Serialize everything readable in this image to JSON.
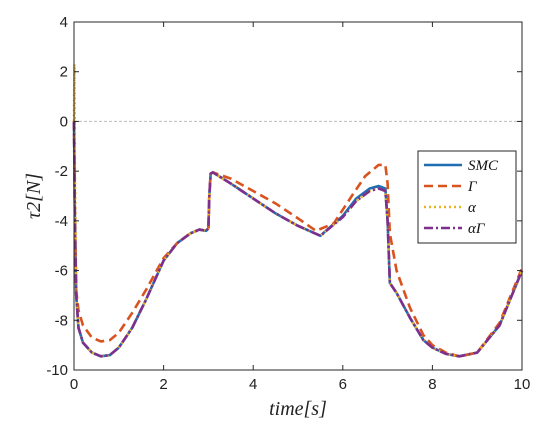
{
  "chart_data": {
    "type": "line",
    "title": "",
    "xlabel": "time[s]",
    "ylabel": "τ2[N]",
    "xlim": [
      0,
      10
    ],
    "ylim": [
      -10,
      4
    ],
    "xticks": [
      0,
      2,
      4,
      6,
      8,
      10
    ],
    "yticks": [
      4,
      2,
      0,
      -2,
      -4,
      -6,
      -8,
      -10
    ],
    "grid": false,
    "zero_line": true,
    "legend_position": "right",
    "series": [
      {
        "name": "SMC",
        "color": "#1f6eb5",
        "style": "solid",
        "x": [
          0,
          0.02,
          0.05,
          0.1,
          0.2,
          0.4,
          0.6,
          0.8,
          1.0,
          1.3,
          1.6,
          2.0,
          2.3,
          2.6,
          2.8,
          2.95,
          3.0,
          3.02,
          3.05,
          3.1,
          3.5,
          4.0,
          4.5,
          5.0,
          5.5,
          6.0,
          6.3,
          6.6,
          6.8,
          6.95,
          7.0,
          7.05,
          7.2,
          7.5,
          7.8,
          8.0,
          8.3,
          8.6,
          9.0,
          9.5,
          10.0
        ],
        "y": [
          0,
          -4,
          -7.0,
          -8.3,
          -8.9,
          -9.3,
          -9.45,
          -9.4,
          -9.1,
          -8.3,
          -7.2,
          -5.6,
          -4.9,
          -4.5,
          -4.35,
          -4.4,
          -4.3,
          -3.0,
          -2.1,
          -2.05,
          -2.5,
          -3.1,
          -3.7,
          -4.2,
          -4.6,
          -3.8,
          -3.1,
          -2.7,
          -2.6,
          -2.7,
          -4.0,
          -6.5,
          -6.9,
          -7.9,
          -8.8,
          -9.1,
          -9.35,
          -9.45,
          -9.3,
          -8.2,
          -6.0
        ]
      },
      {
        "name": "Γ",
        "color": "#d9531e",
        "style": "dashed",
        "x": [
          0,
          0.02,
          0.05,
          0.1,
          0.2,
          0.4,
          0.6,
          0.8,
          1.0,
          1.3,
          1.6,
          2.0,
          2.3,
          2.6,
          2.8,
          2.95,
          3.0,
          3.02,
          3.05,
          3.1,
          3.5,
          4.0,
          4.5,
          5.0,
          5.4,
          5.8,
          6.2,
          6.5,
          6.8,
          6.95,
          7.0,
          7.05,
          7.2,
          7.5,
          7.8,
          8.0,
          8.3,
          8.6,
          9.0,
          9.5,
          10.0
        ],
        "y": [
          0,
          -4,
          -6.8,
          -7.6,
          -8.2,
          -8.7,
          -8.85,
          -8.8,
          -8.5,
          -7.7,
          -6.8,
          -5.5,
          -4.9,
          -4.5,
          -4.35,
          -4.4,
          -4.3,
          -3.0,
          -2.1,
          -2.05,
          -2.3,
          -2.8,
          -3.3,
          -3.9,
          -4.4,
          -4.1,
          -3.0,
          -2.2,
          -1.75,
          -1.75,
          -2.5,
          -4.5,
          -6.0,
          -7.5,
          -8.6,
          -9.0,
          -9.3,
          -9.45,
          -9.3,
          -8.1,
          -5.9
        ]
      },
      {
        "name": "α",
        "color": "#edb120",
        "style": "dotted",
        "x": [
          0,
          0.01,
          0.02,
          0.05,
          0.1,
          0.2,
          0.4,
          0.6,
          0.8,
          1.0,
          1.3,
          1.6,
          2.0,
          2.3,
          2.6,
          2.8,
          2.95,
          3.0,
          3.02,
          3.05,
          3.1,
          3.5,
          4.0,
          4.5,
          5.0,
          5.5,
          6.0,
          6.3,
          6.6,
          6.8,
          6.95,
          7.0,
          7.05,
          7.2,
          7.5,
          7.8,
          8.0,
          8.3,
          8.6,
          9.0,
          9.5,
          10.0
        ],
        "y": [
          0,
          2.3,
          -2,
          -7.0,
          -8.3,
          -8.9,
          -9.3,
          -9.45,
          -9.4,
          -9.1,
          -8.3,
          -7.2,
          -5.6,
          -4.9,
          -4.5,
          -4.35,
          -4.4,
          -4.3,
          -3.0,
          -2.1,
          -2.05,
          -2.5,
          -3.1,
          -3.7,
          -4.2,
          -4.6,
          -3.85,
          -3.2,
          -2.8,
          -2.7,
          -2.8,
          -4.0,
          -6.5,
          -6.9,
          -7.9,
          -8.8,
          -9.1,
          -9.35,
          -9.45,
          -9.3,
          -8.2,
          -6.0
        ]
      },
      {
        "name": "αΓ",
        "color": "#7e2f8e",
        "style": "dashdot",
        "x": [
          0,
          0.02,
          0.05,
          0.1,
          0.2,
          0.4,
          0.6,
          0.8,
          1.0,
          1.3,
          1.6,
          2.0,
          2.3,
          2.6,
          2.8,
          2.95,
          3.0,
          3.02,
          3.05,
          3.1,
          3.5,
          4.0,
          4.5,
          5.0,
          5.5,
          6.0,
          6.3,
          6.6,
          6.8,
          6.95,
          7.0,
          7.05,
          7.2,
          7.5,
          7.8,
          8.0,
          8.3,
          8.6,
          9.0,
          9.5,
          10.0
        ],
        "y": [
          0,
          -4,
          -7.0,
          -8.3,
          -8.9,
          -9.3,
          -9.45,
          -9.4,
          -9.1,
          -8.3,
          -7.2,
          -5.6,
          -4.9,
          -4.5,
          -4.35,
          -4.4,
          -4.3,
          -3.0,
          -2.1,
          -2.05,
          -2.5,
          -3.1,
          -3.7,
          -4.2,
          -4.6,
          -3.85,
          -3.2,
          -2.8,
          -2.7,
          -2.8,
          -4.0,
          -6.5,
          -6.9,
          -7.9,
          -8.8,
          -9.1,
          -9.35,
          -9.45,
          -9.3,
          -8.2,
          -6.0
        ]
      }
    ]
  }
}
